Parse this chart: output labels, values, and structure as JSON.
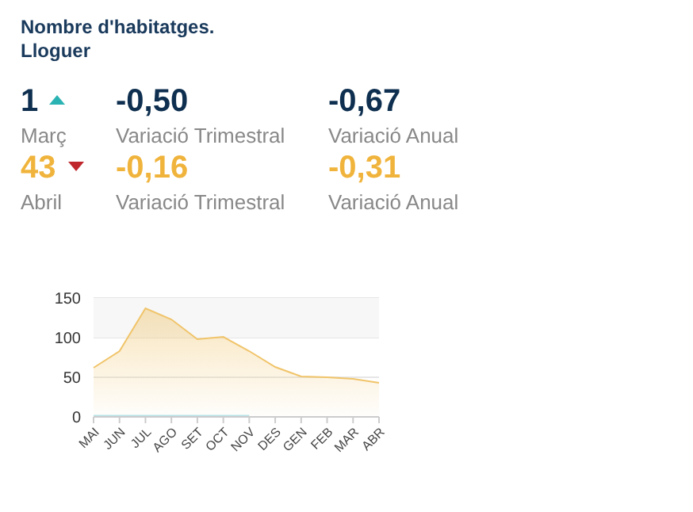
{
  "chart_data": [
    {
      "type": "other",
      "title": "Nombre d'habitatges. Lloguer",
      "colors": [
        "#0e2f4f",
        "#f0b43c"
      ],
      "annotations": [
        "1",
        "Març",
        "-0,50",
        "Variació Trimestral",
        "-0,67",
        "Variació Anual",
        "43",
        "Abril",
        "-0,16",
        "Variació Trimestral",
        "-0,31",
        "Variació Anual"
      ]
    },
    {
      "type": "area",
      "categories": [
        "MAI",
        "JUN",
        "JUL",
        "AGO",
        "SET",
        "OCT",
        "NOV",
        "DES",
        "GEN",
        "FEB",
        "MAR",
        "ABR"
      ],
      "series": [
        {
          "type": "area",
          "color": "#f0c46a",
          "values": [
            62,
            83,
            137,
            123,
            98,
            101,
            83,
            63,
            51,
            50,
            48,
            43
          ]
        },
        {
          "type": "line",
          "color": "#b5e2e6",
          "values": [
            1,
            1,
            1,
            1,
            1,
            1,
            1,
            null,
            null,
            null,
            null,
            null
          ]
        }
      ],
      "ylim": [
        0,
        150
      ],
      "yticks": [
        0,
        50,
        100,
        150
      ],
      "grid": "y",
      "bands": [
        {
          "axis": "y",
          "from": 100,
          "to": 150,
          "color": "#f7f7f7"
        }
      ]
    }
  ]
}
